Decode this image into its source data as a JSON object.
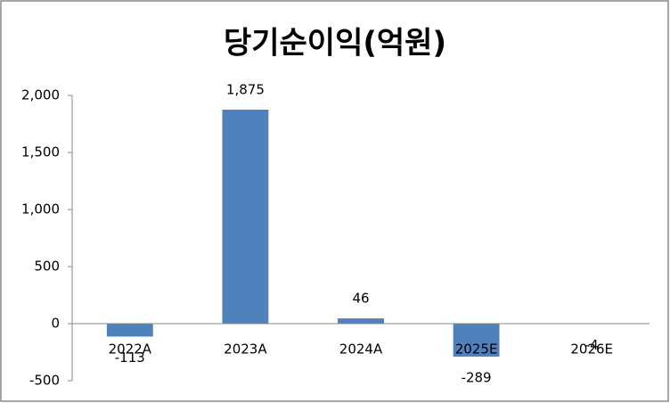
{
  "chart_data": {
    "type": "bar",
    "title": "당기순이익(억원)",
    "categories": [
      "2022A",
      "2023A",
      "2024A",
      "2025E",
      "2026E"
    ],
    "values": [
      -113,
      1875,
      46,
      -289,
      -4
    ],
    "value_labels": [
      "-113",
      "1,875",
      "46",
      "-289",
      "-4"
    ],
    "color": "#4f81bd",
    "ylim": [
      -500,
      2000
    ],
    "yticks": [
      -500,
      0,
      500,
      {
        "value": 1000,
        "label": "1,000"
      },
      {
        "value": 1500,
        "label": "1,500"
      },
      {
        "value": 2000,
        "label": "2,000"
      }
    ],
    "grid": false
  }
}
